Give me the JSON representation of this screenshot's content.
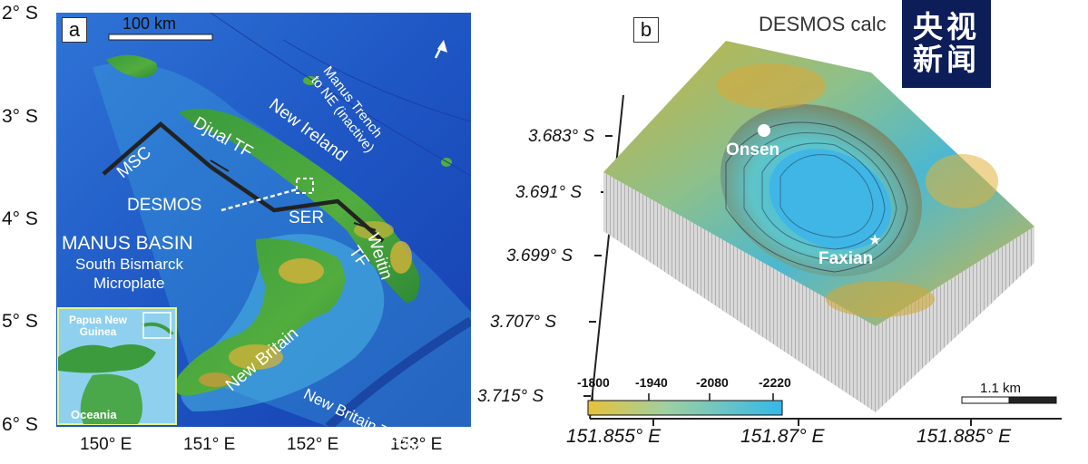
{
  "panel_a": {
    "letter": "a",
    "scale_bar": "100 km",
    "lat_labels": [
      "2° S",
      "3° S",
      "4° S",
      "5° S",
      "6° S"
    ],
    "lon_labels": [
      "150° E",
      "151° E",
      "152° E",
      "153° E"
    ],
    "labels": {
      "manus_trench": "Manus Trench to NE (inactive)",
      "new_ireland": "New Ireland",
      "djual_tf": "Djual TF",
      "msc": "MSC",
      "desmos": "DESMOS",
      "ser": "SER",
      "weitin": "Weitin",
      "tf": "TF",
      "manus_basin": "MANUS BASIN",
      "south_bismarck": "South Bismarck",
      "microplate": "Microplate",
      "new_britain": "New Britain",
      "new_britain_trench": "New Britain Trench"
    },
    "inset": {
      "png": "Papua New Guinea",
      "oceania": "Oceania"
    }
  },
  "panel_b": {
    "letter": "b",
    "title": "DESMOS calc",
    "lat_labels": [
      "3.683° S",
      "3.691° S",
      "3.699° S",
      "3.707° S",
      "3.715° S"
    ],
    "lon_labels": [
      "151.855° E",
      "151.87° E",
      "151.885° E"
    ],
    "sites": [
      "Onsen",
      "Faxian"
    ],
    "colorbar_ticks": [
      "-1800",
      "-1940",
      "-2080",
      "-2220"
    ],
    "scale_bar": "1.1 km"
  },
  "watermark": {
    "line1": "央视",
    "line2": "新闻",
    "bg_color": "#0c1d58"
  },
  "colors": {
    "deep_sea": "#1a4fbf",
    "shallow": "#3fb0e0",
    "land_low": "#2f9a3a",
    "land_high": "#d6b23a",
    "colorbar_start": "#e8c23a",
    "colorbar_end": "#35b8e8"
  }
}
